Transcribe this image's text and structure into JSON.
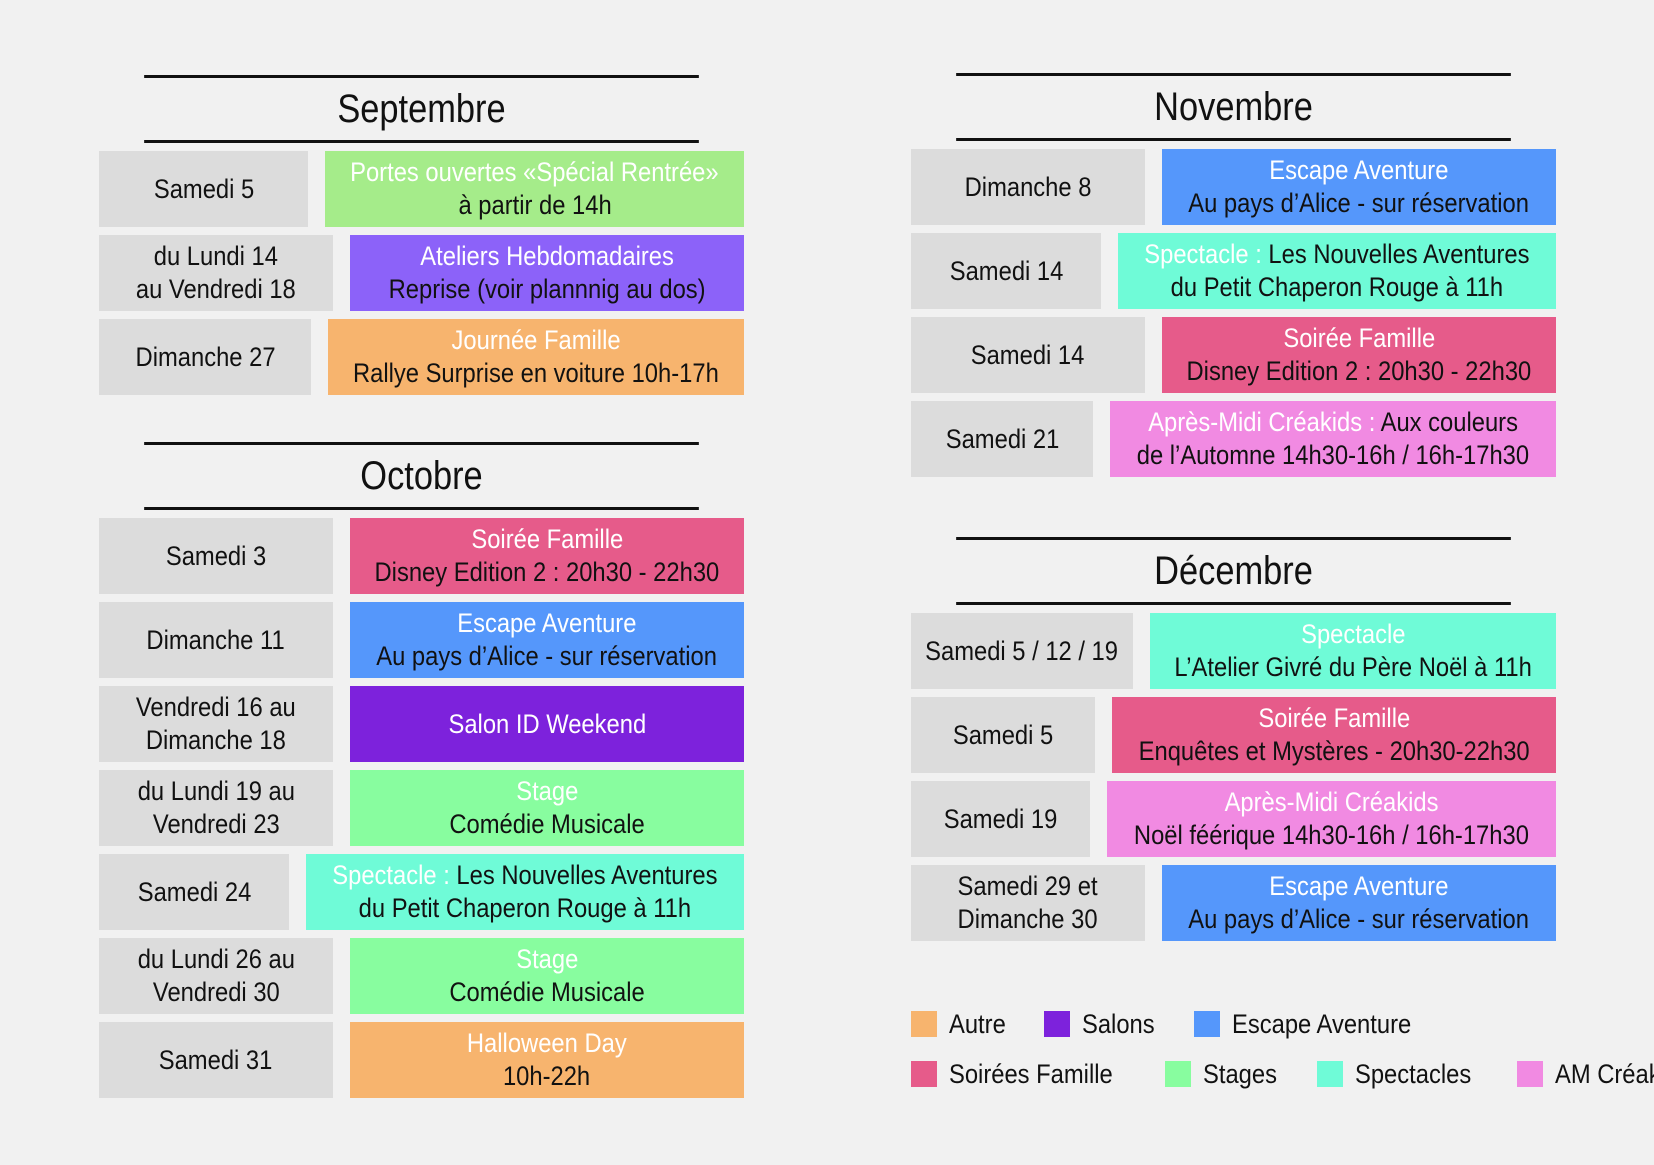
{
  "colors": {
    "autre": "#f7b46e",
    "salons": "#7d22dc",
    "escape": "#5597fb",
    "soiree": "#e65b8a",
    "stage": "#88fd9f",
    "stage_light": "#a5ec8a",
    "ateliers": "#8c62f9",
    "spectacle": "#6ffbd7",
    "creakids": "#f18ae2"
  },
  "months": [
    {
      "title": "Septembre",
      "events": [
        {
          "date": [
            "Samedi 5"
          ],
          "color": "stage_light",
          "lines": [
            [
              {
                "t": "Portes ouvertes «Spécial Rentrée»",
                "c": "w"
              }
            ],
            [
              {
                "t": "à partir de 14h",
                "c": "k"
              }
            ]
          ]
        },
        {
          "date": [
            "du Lundi 14",
            "au Vendredi 18"
          ],
          "color": "ateliers",
          "lines": [
            [
              {
                "t": "Ateliers Hebdomadaires",
                "c": "w"
              }
            ],
            [
              {
                "t": "Reprise (voir plannnig au dos)",
                "c": "k"
              }
            ]
          ]
        },
        {
          "date": [
            "Dimanche 27"
          ],
          "color": "autre",
          "lines": [
            [
              {
                "t": "Journée Famille",
                "c": "w"
              }
            ],
            [
              {
                "t": "Rallye Surprise en voiture 10h-17h",
                "c": "k"
              }
            ]
          ]
        }
      ]
    },
    {
      "title": "Octobre",
      "events": [
        {
          "date": [
            "Samedi 3"
          ],
          "color": "soiree",
          "lines": [
            [
              {
                "t": "Soirée Famille",
                "c": "w"
              }
            ],
            [
              {
                "t": "Disney Edition 2 : 20h30 - 22h30",
                "c": "k"
              }
            ]
          ]
        },
        {
          "date": [
            "Dimanche 11"
          ],
          "color": "escape",
          "lines": [
            [
              {
                "t": "Escape Aventure",
                "c": "w"
              }
            ],
            [
              {
                "t": "Au pays d’Alice - sur réservation",
                "c": "k"
              }
            ]
          ]
        },
        {
          "date": [
            "Vendredi 16 au",
            "Dimanche 18"
          ],
          "color": "salons",
          "lines": [
            [
              {
                "t": "Salon ID Weekend",
                "c": "w"
              }
            ]
          ]
        },
        {
          "date": [
            "du Lundi 19 au",
            "Vendredi 23"
          ],
          "color": "stage",
          "lines": [
            [
              {
                "t": "Stage",
                "c": "w"
              }
            ],
            [
              {
                "t": "Comédie Musicale",
                "c": "k"
              }
            ]
          ]
        },
        {
          "date": [
            "Samedi 24"
          ],
          "color": "spectacle",
          "lines": [
            [
              {
                "t": "Spectacle : ",
                "c": "w"
              },
              {
                "t": "Les Nouvelles Aventures",
                "c": "k"
              }
            ],
            [
              {
                "t": "du Petit Chaperon Rouge à 11h",
                "c": "k"
              }
            ]
          ]
        },
        {
          "date": [
            "du Lundi 26 au",
            "Vendredi 30"
          ],
          "color": "stage",
          "lines": [
            [
              {
                "t": "Stage",
                "c": "w"
              }
            ],
            [
              {
                "t": "Comédie Musicale",
                "c": "k"
              }
            ]
          ]
        },
        {
          "date": [
            "Samedi 31"
          ],
          "color": "autre",
          "lines": [
            [
              {
                "t": "Halloween Day",
                "c": "w"
              }
            ],
            [
              {
                "t": "10h-22h",
                "c": "k"
              }
            ]
          ]
        }
      ]
    },
    {
      "title": "Novembre",
      "events": [
        {
          "date": [
            "Dimanche 8"
          ],
          "color": "escape",
          "lines": [
            [
              {
                "t": "Escape Aventure",
                "c": "w"
              }
            ],
            [
              {
                "t": "Au pays d’Alice - sur réservation",
                "c": "k"
              }
            ]
          ]
        },
        {
          "date": [
            "Samedi 14"
          ],
          "color": "spectacle",
          "lines": [
            [
              {
                "t": "Spectacle : ",
                "c": "w"
              },
              {
                "t": "Les Nouvelles Aventures",
                "c": "k"
              }
            ],
            [
              {
                "t": "du Petit Chaperon Rouge à 11h",
                "c": "k"
              }
            ]
          ]
        },
        {
          "date": [
            "Samedi 14"
          ],
          "color": "soiree",
          "lines": [
            [
              {
                "t": "Soirée Famille",
                "c": "w"
              }
            ],
            [
              {
                "t": "Disney Edition 2 : 20h30 - 22h30",
                "c": "k"
              }
            ]
          ]
        },
        {
          "date": [
            "Samedi 21"
          ],
          "color": "creakids",
          "lines": [
            [
              {
                "t": "Après-Midi Créakids : ",
                "c": "w"
              },
              {
                "t": "Aux couleurs",
                "c": "k"
              }
            ],
            [
              {
                "t": "de l’Automne 14h30-16h / 16h-17h30",
                "c": "k"
              }
            ]
          ]
        }
      ]
    },
    {
      "title": "Décembre",
      "events": [
        {
          "date": [
            "Samedi 5 / 12 / 19"
          ],
          "color": "spectacle",
          "lines": [
            [
              {
                "t": "Spectacle",
                "c": "w"
              }
            ],
            [
              {
                "t": "L’Atelier Givré du Père Noël à 11h",
                "c": "k"
              }
            ]
          ]
        },
        {
          "date": [
            "Samedi 5"
          ],
          "color": "soiree",
          "lines": [
            [
              {
                "t": "Soirée Famille",
                "c": "w"
              }
            ],
            [
              {
                "t": "Enquêtes et Mystères - 20h30-22h30",
                "c": "k"
              }
            ]
          ]
        },
        {
          "date": [
            "Samedi 19"
          ],
          "color": "creakids",
          "lines": [
            [
              {
                "t": "Après-Midi Créakids",
                "c": "w"
              }
            ],
            [
              {
                "t": "Noël féérique 14h30-16h / 16h-17h30",
                "c": "k"
              }
            ]
          ]
        },
        {
          "date": [
            "Samedi 29 et",
            "Dimanche 30"
          ],
          "color": "escape",
          "lines": [
            [
              {
                "t": "Escape Aventure",
                "c": "w"
              }
            ],
            [
              {
                "t": "Au pays d’Alice - sur réservation",
                "c": "k"
              }
            ]
          ]
        }
      ]
    }
  ],
  "legend": [
    [
      {
        "label": "Autre",
        "color": "autre"
      },
      {
        "label": "Salons",
        "color": "salons"
      },
      {
        "label": "Escape Aventure",
        "color": "escape"
      }
    ],
    [
      {
        "label": "Soirées Famille",
        "color": "soiree"
      },
      {
        "label": "Stages",
        "color": "stage"
      },
      {
        "label": "Spectacles",
        "color": "spectacle"
      },
      {
        "label": "AM Créakids",
        "color": "creakids"
      }
    ]
  ]
}
